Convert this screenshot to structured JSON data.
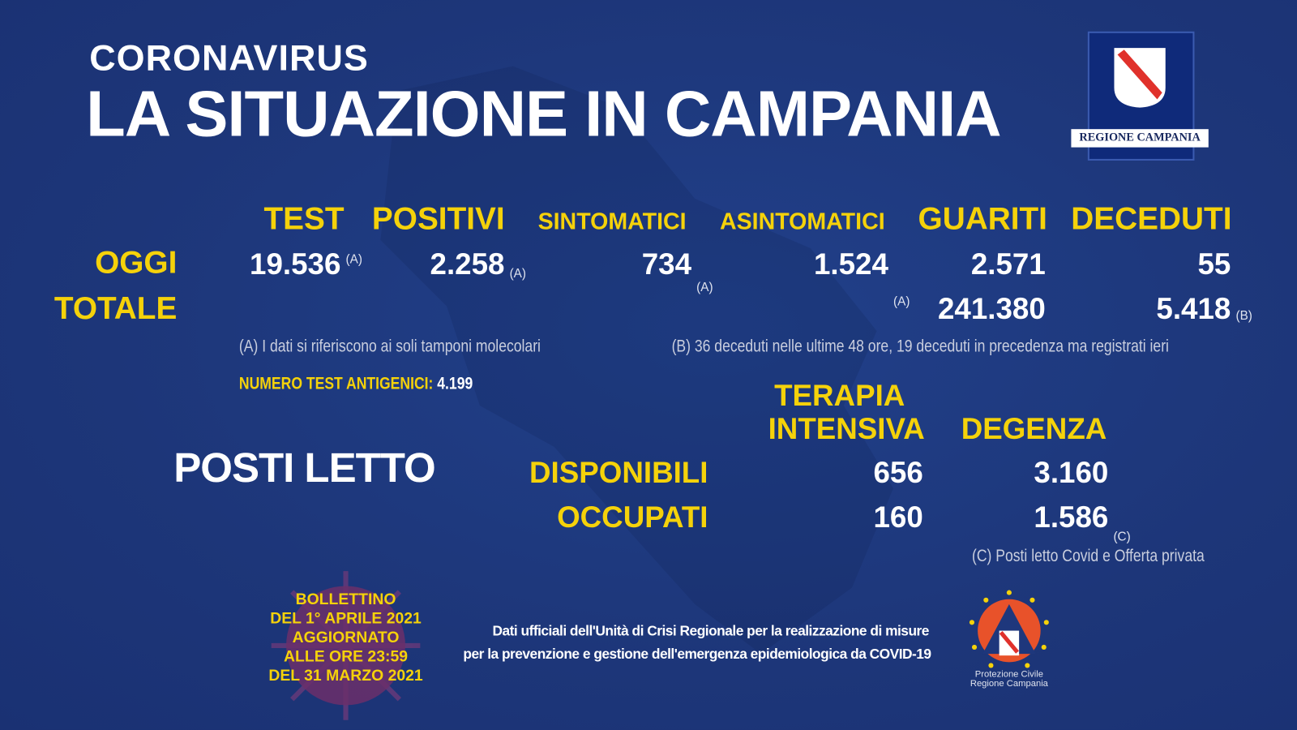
{
  "header": {
    "kicker": "CORONAVIRUS",
    "title": "LA SITUAZIONE IN CAMPANIA",
    "logo_text": "REGIONE CAMPANIA"
  },
  "columns": [
    "TEST",
    "POSITIVI",
    "SINTOMATICI",
    "ASINTOMATICI",
    "GUARITI",
    "DECEDUTI"
  ],
  "rows": {
    "oggi": {
      "label": "OGGI",
      "values": [
        "19.536",
        "2.258",
        "734",
        "1.524",
        "2.571",
        "55"
      ],
      "notes": [
        "(A)",
        "(A)",
        "(A)",
        "(A)",
        "",
        "(B)"
      ]
    },
    "totale": {
      "label": "TOTALE",
      "guariti": "241.380",
      "deceduti": "5.418"
    }
  },
  "notes": {
    "a": "(A) I dati si riferiscono ai soli tamponi molecolari",
    "b": "(B) 36 deceduti nelle ultime 48 ore, 19 deceduti in precedenza ma registrati ieri",
    "antigen_label": "NUMERO TEST ANTIGENICI:",
    "antigen_value": "4.199",
    "c": "(C) Posti letto Covid e Offerta privata"
  },
  "beds": {
    "title": "POSTI LETTO",
    "col1_line1": "TERAPIA",
    "col1_line2": "INTENSIVA",
    "col2": "DEGENZA",
    "disponibili": {
      "label": "DISPONIBILI",
      "ti": "656",
      "degenza": "3.160",
      "note": "(C)"
    },
    "occupati": {
      "label": "OCCUPATI",
      "ti": "160",
      "degenza": "1.586"
    }
  },
  "bulletin": [
    "BOLLETTINO",
    "DEL 1° APRILE 2021",
    "AGGIORNATO",
    "ALLE ORE 23:59",
    "DEL 31 MARZO 2021"
  ],
  "footer": {
    "line1": "Dati ufficiali dell'Unità di Crisi Regionale per la realizzazione di misure",
    "line2": "per la prevenzione e gestione dell'emergenza epidemiologica da COVID-19"
  },
  "protezione": {
    "line1": "Protezione Civile",
    "line2": "Regione Campania"
  },
  "colors": {
    "background": "#1e377c",
    "accent": "#f5d20a",
    "text": "#ffffff",
    "logo_red": "#e0312b"
  }
}
